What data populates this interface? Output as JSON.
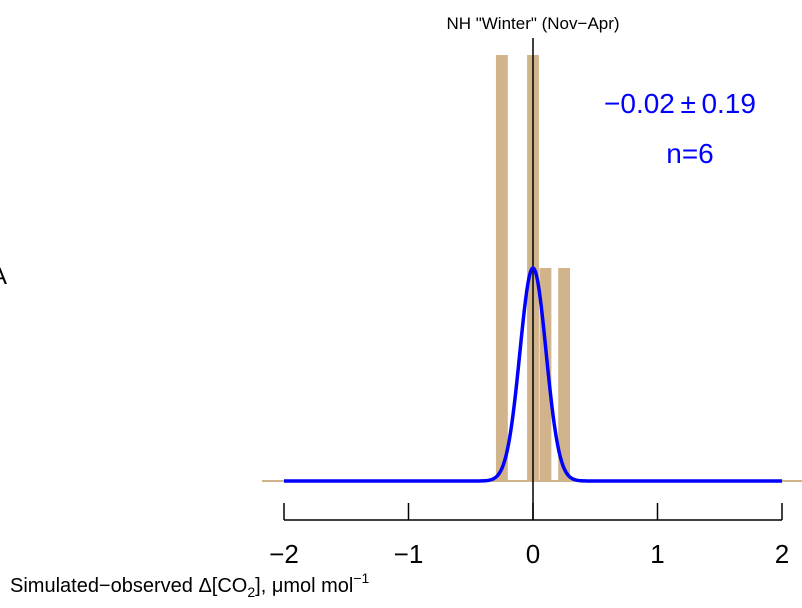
{
  "chart_data": {
    "type": "bar",
    "title": "NH \"Winter\" (Nov−Apr)",
    "xlabel": {
      "prefix": "Simulated−observed Δ[CO",
      "sub": "2",
      "mid": "], μmol mol",
      "sup": "−1"
    },
    "xlim": [
      -2,
      2
    ],
    "ylim": [
      0,
      2
    ],
    "x_ticks": [
      -2,
      -1,
      0,
      1,
      2
    ],
    "x_tick_labels": [
      "−2",
      "−1",
      "0",
      "1",
      "2"
    ],
    "bar_width": 0.1,
    "bars": [
      {
        "x": -0.25,
        "value": 2
      },
      {
        "x": 0.0,
        "value": 2
      },
      {
        "x": 0.1,
        "value": 1
      },
      {
        "x": 0.25,
        "value": 1
      }
    ],
    "density_curve": {
      "mean": 0.0,
      "sd": 0.105,
      "peak": 1.0,
      "x_range": [
        -2,
        2
      ]
    },
    "reference_line_x": 0,
    "annotation": {
      "line1": "−0.02 ± 0.19",
      "line2": "n=6"
    },
    "left_edge_text": "A",
    "colors": {
      "bars": "#d2b48c",
      "curve": "#0000ff",
      "reference_line": "#000000",
      "baseline": "#d2b48c"
    }
  }
}
